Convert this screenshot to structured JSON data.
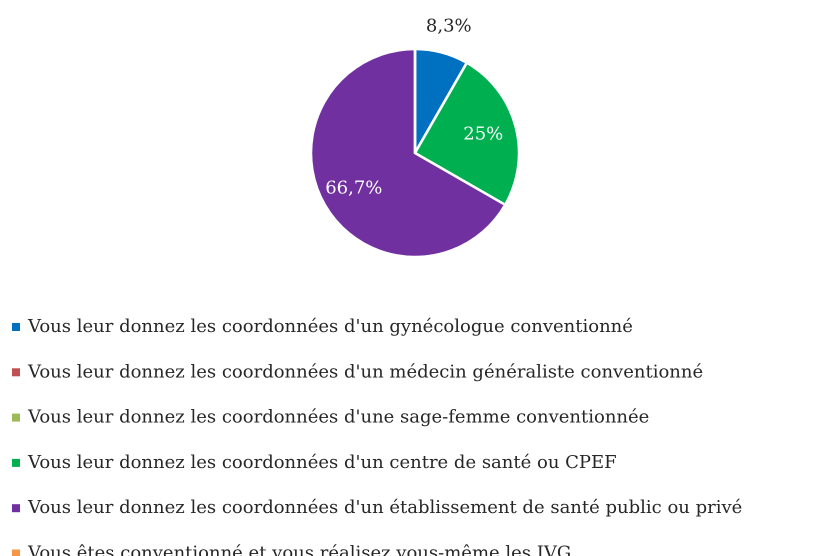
{
  "chart_data": {
    "type": "pie",
    "categories": [
      "Vous leur donnez les coordonnées d'un gynécologue conventionné",
      "Vous leur donnez les coordonnées d'un médecin généraliste conventionné",
      "Vous leur donnez les coordonnées d'une sage-femme conventionnée",
      "Vous leur donnez les coordonnées d'un centre de santé ou CPEF",
      "Vous leur donnez les coordonnées d'un établissement de santé public ou privé",
      "Vous êtes conventionné et vous réalisez vous-même les IVG"
    ],
    "values": [
      8.3,
      0,
      0,
      25,
      66.7,
      0
    ],
    "value_labels": [
      "8,3%",
      null,
      null,
      "25%",
      "66,7%",
      null
    ],
    "colors": [
      "#0070c0",
      "#c0504d",
      "#9bbb59",
      "#00b050",
      "#7030a0",
      "#f79646"
    ],
    "legend": "bottom"
  }
}
